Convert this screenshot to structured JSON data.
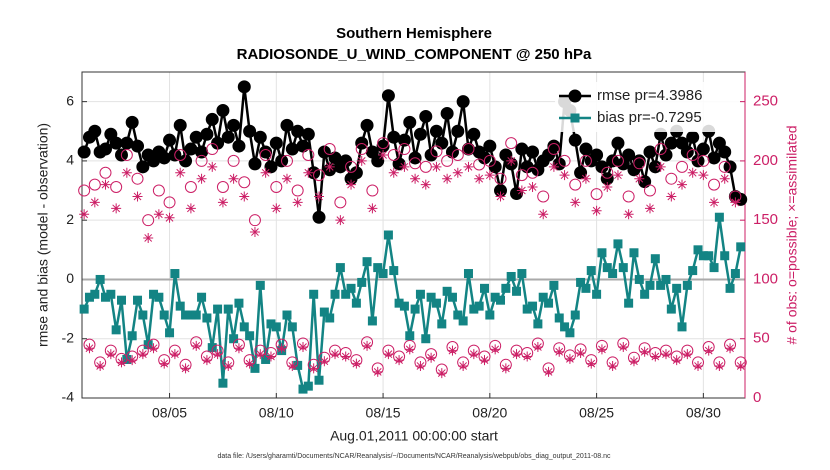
{
  "chart_data": {
    "type": "line",
    "title": "Southern Hemisphere",
    "subtitle": "RADIOSONDE_U_WIND_COMPONENT @ 250 hPa",
    "xlabel": "Aug.01,2011 00:00:00 start",
    "ylabel": "rmse and bias (model - observation)",
    "y2label": "# of obs: o=possible; ×=assimilated",
    "footnote": "data file: /Users/gharamti/Documents/NCAR/Reanalysis/~/Documents/NCAR/Reanalysis/webpub/obs_diag_output_2011-08.nc",
    "legend": "northeast",
    "grid": true,
    "hline": 0,
    "xlim": [
      0.9,
      31.95
    ],
    "xticks": [
      {
        "value": 5,
        "label": "08/05"
      },
      {
        "value": 10,
        "label": "08/10"
      },
      {
        "value": 15,
        "label": "08/15"
      },
      {
        "value": 20,
        "label": "08/20"
      },
      {
        "value": 25,
        "label": "08/25"
      },
      {
        "value": 30,
        "label": "08/30"
      }
    ],
    "ylim": [
      -4,
      7
    ],
    "yticks": [
      -4,
      -2,
      0,
      2,
      4,
      6
    ],
    "y2lim": [
      0,
      275
    ],
    "y2ticks": [
      0,
      50,
      100,
      150,
      200,
      250
    ],
    "x": [
      1,
      1.25,
      1.5,
      1.75,
      2,
      2.25,
      2.5,
      2.75,
      3,
      3.25,
      3.5,
      3.75,
      4,
      4.25,
      4.5,
      4.75,
      5,
      5.25,
      5.5,
      5.75,
      6,
      6.25,
      6.5,
      6.75,
      7,
      7.25,
      7.5,
      7.75,
      8,
      8.25,
      8.5,
      8.75,
      9,
      9.25,
      9.5,
      9.75,
      10,
      10.25,
      10.5,
      10.75,
      11,
      11.25,
      11.5,
      11.75,
      12,
      12.25,
      12.5,
      12.75,
      13,
      13.25,
      13.5,
      13.75,
      14,
      14.25,
      14.5,
      14.75,
      15,
      15.25,
      15.5,
      15.75,
      16,
      16.25,
      16.5,
      16.75,
      17,
      17.25,
      17.5,
      17.75,
      18,
      18.25,
      18.5,
      18.75,
      19,
      19.25,
      19.5,
      19.75,
      20,
      20.25,
      20.5,
      20.75,
      21,
      21.25,
      21.5,
      21.75,
      22,
      22.25,
      22.5,
      22.75,
      23,
      23.25,
      23.5,
      23.75,
      24,
      24.25,
      24.5,
      24.75,
      25,
      25.25,
      25.5,
      25.75,
      26,
      26.25,
      26.5,
      26.75,
      27,
      27.25,
      27.5,
      27.75,
      28,
      28.25,
      28.5,
      28.75,
      29,
      29.25,
      29.5,
      29.75,
      30,
      30.25,
      30.5,
      30.75,
      31,
      31.25,
      31.5,
      31.75
    ],
    "series": [
      {
        "name": "rmse pr=4.3986",
        "color": "#000000",
        "marker": "circle",
        "line": true,
        "values": [
          4.3,
          4.8,
          5.0,
          4.3,
          4.4,
          4.9,
          4.6,
          4.2,
          4.6,
          5.3,
          4.5,
          3.8,
          4.2,
          4.0,
          4.3,
          4.1,
          4.7,
          4.2,
          5.2,
          4.0,
          4.4,
          4.8,
          4.3,
          4.9,
          5.4,
          4.6,
          5.7,
          4.8,
          5.2,
          4.5,
          6.5,
          5.0,
          3.9,
          4.8,
          4.3,
          3.8,
          4.6,
          4.0,
          5.2,
          4.4,
          5.0,
          4.5,
          4.9,
          3.6,
          2.1,
          4.3,
          3.7,
          4.1,
          3.8,
          4.0,
          3.4,
          3.6,
          4.6,
          5.2,
          4.3,
          4.0,
          4.5,
          6.2,
          4.8,
          3.9,
          4.7,
          5.3,
          4.1,
          4.9,
          5.5,
          4.2,
          5.0,
          4.6,
          5.6,
          4.3,
          5.0,
          6.0,
          4.4,
          4.9,
          4.3,
          4.1,
          4.5,
          3.8,
          3.0,
          4.2,
          3.9,
          2.9,
          4.4,
          3.8,
          4.3,
          3.7,
          4.0,
          4.2,
          4.5,
          3.9,
          6.0,
          5.7,
          4.7,
          3.6,
          4.4,
          4.0,
          4.2,
          3.8,
          3.4,
          4.0,
          4.6,
          3.9,
          4.2,
          3.7,
          4.0,
          3.3,
          4.3,
          3.8,
          4.9,
          4.2,
          4.6,
          5.0,
          4.6,
          4.3,
          4.8,
          4.0,
          4.4,
          5.0,
          4.1,
          4.6,
          4.3,
          3.8,
          2.8,
          2.7
        ]
      },
      {
        "name": "bias pr=-0.7295",
        "color": "#138484",
        "marker": "square",
        "line": true,
        "values": [
          -1.0,
          -0.6,
          -0.5,
          0.0,
          -0.6,
          -0.5,
          -1.7,
          -0.7,
          -2.7,
          -1.9,
          -0.7,
          -1.2,
          -2.2,
          -0.5,
          -0.6,
          -1.2,
          -1.8,
          0.2,
          -0.9,
          -1.2,
          -1.2,
          -1.2,
          -0.6,
          -1.3,
          -2.3,
          -1.0,
          -3.5,
          -1.0,
          -2.0,
          -0.8,
          -1.6,
          -1.9,
          -3.0,
          -0.2,
          -2.7,
          -1.5,
          -1.6,
          -2.4,
          -1.2,
          -1.6,
          -2.9,
          -3.7,
          -3.6,
          -0.5,
          -3.4,
          -1.1,
          -1.3,
          -0.5,
          0.4,
          -0.5,
          -0.3,
          -0.8,
          -0.1,
          0.6,
          -1.4,
          0.4,
          0.2,
          1.5,
          0.3,
          -0.8,
          -0.9,
          -1.9,
          -1.0,
          -0.5,
          -2.0,
          -0.6,
          -0.8,
          -1.5,
          -0.4,
          -0.6,
          -1.2,
          -1.4,
          0.2,
          -1.0,
          -0.9,
          -0.3,
          -1.2,
          -0.6,
          -0.7,
          -0.3,
          0.1,
          -0.4,
          0.2,
          -1.0,
          -0.9,
          -1.5,
          -0.6,
          -0.8,
          -0.2,
          -1.3,
          -1.6,
          -1.8,
          -1.2,
          -0.1,
          -0.3,
          0.3,
          -0.5,
          0.9,
          0.4,
          0.2,
          1.2,
          0.4,
          -0.8,
          0.9,
          0.0,
          -0.5,
          -0.2,
          0.7,
          -0.2,
          0.0,
          -1.0,
          -0.3,
          -1.6,
          -0.2,
          0.3,
          1.0,
          0.8,
          0.8,
          0.4,
          2.1,
          0.8,
          -0.3,
          0.2,
          1.1
        ]
      },
      {
        "axis": "y2",
        "color": "#cc1f66",
        "marker": "open-circle",
        "line": false,
        "values": [
          175,
          45,
          180,
          30,
          190,
          40,
          178,
          33,
          205,
          35,
          185,
          40,
          150,
          45,
          175,
          32,
          165,
          40,
          205,
          28,
          178,
          47,
          200,
          35,
          210,
          40,
          178,
          30,
          200,
          45,
          182,
          32,
          150,
          40,
          205,
          38,
          178,
          45,
          200,
          30,
          175,
          46,
          205,
          28,
          188,
          34,
          210,
          40,
          165,
          38,
          195,
          32,
          210,
          47,
          175,
          25,
          215,
          40,
          205,
          35,
          210,
          44,
          198,
          30,
          195,
          37,
          208,
          24,
          200,
          43,
          205,
          30,
          210,
          40,
          197,
          35,
          200,
          44,
          185,
          28,
          215,
          40,
          188,
          38,
          190,
          46,
          170,
          25,
          210,
          42,
          200,
          36,
          180,
          41,
          200,
          32,
          172,
          44,
          190,
          30,
          200,
          46,
          170,
          34,
          198,
          42,
          175,
          38,
          210,
          40,
          185,
          35,
          195,
          40,
          205,
          30,
          200,
          43,
          180,
          30,
          195,
          45,
          170,
          30
        ]
      },
      {
        "axis": "y2",
        "color": "#cc1f66",
        "marker": "asterisk",
        "line": false,
        "values": [
          155,
          42,
          165,
          27,
          180,
          37,
          160,
          30,
          190,
          32,
          170,
          37,
          135,
          42,
          155,
          29,
          152,
          37,
          190,
          25,
          160,
          44,
          185,
          32,
          195,
          37,
          165,
          27,
          185,
          42,
          170,
          29,
          140,
          37,
          190,
          35,
          160,
          42,
          185,
          27,
          165,
          43,
          190,
          25,
          170,
          31,
          195,
          37,
          150,
          35,
          180,
          29,
          200,
          44,
          160,
          22,
          205,
          37,
          190,
          32,
          195,
          41,
          185,
          27,
          180,
          34,
          195,
          21,
          185,
          40,
          190,
          27,
          195,
          37,
          185,
          32,
          188,
          41,
          170,
          25,
          200,
          37,
          175,
          35,
          178,
          43,
          155,
          22,
          195,
          39,
          188,
          33,
          165,
          38,
          185,
          29,
          158,
          41,
          178,
          27,
          188,
          43,
          155,
          31,
          185,
          39,
          160,
          35,
          195,
          37,
          170,
          32,
          180,
          37,
          190,
          27,
          188,
          40,
          165,
          27,
          185,
          42,
          165,
          27
        ]
      }
    ]
  }
}
